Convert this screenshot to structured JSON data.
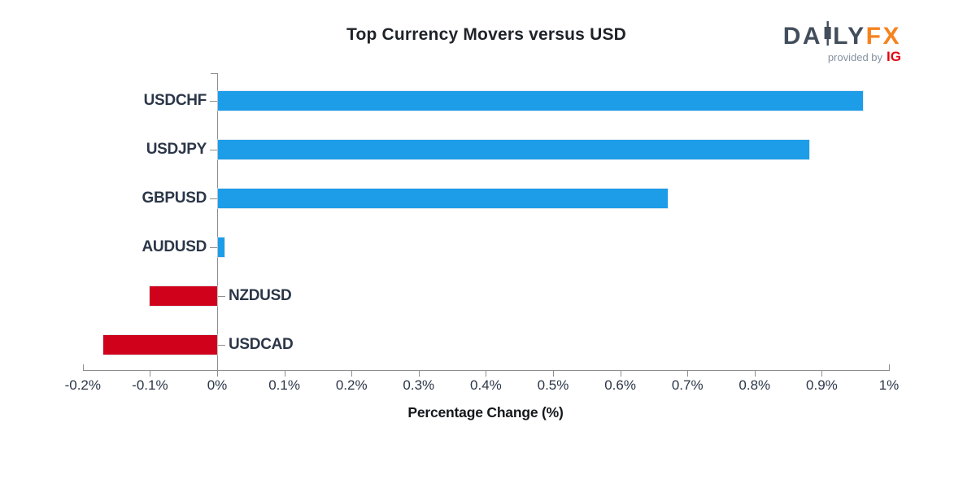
{
  "header": {
    "logo": {
      "brand_left": "DA",
      "brand_right": "LY",
      "brand_accent": "FX",
      "provided_by": "provided by",
      "provider": "IG"
    }
  },
  "chart_data": {
    "type": "bar",
    "orientation": "horizontal",
    "title": "Top Currency Movers versus USD",
    "xlabel": "Percentage Change (%)",
    "categories": [
      "USDCHF",
      "USDJPY",
      "GBPUSD",
      "AUDUSD",
      "NZDUSD",
      "USDCAD"
    ],
    "values": [
      0.96,
      0.88,
      0.67,
      0.01,
      -0.1,
      -0.17
    ],
    "xlim": [
      -0.2,
      1.0
    ],
    "xticks": [
      -0.2,
      -0.1,
      0,
      0.1,
      0.2,
      0.3,
      0.4,
      0.5,
      0.6,
      0.7,
      0.8,
      0.9,
      1.0
    ],
    "xtick_labels": [
      "-0.2%",
      "-0.1%",
      "0%",
      "0.1%",
      "0.2%",
      "0.3%",
      "0.4%",
      "0.5%",
      "0.6%",
      "0.7%",
      "0.8%",
      "0.9%",
      "1%"
    ],
    "grid": false,
    "legend": null,
    "colors": {
      "positive_bar": "#1d9de8",
      "negative_bar": "#d0021b",
      "axis": "#8e8e8e",
      "labels": "#2b3648"
    }
  }
}
